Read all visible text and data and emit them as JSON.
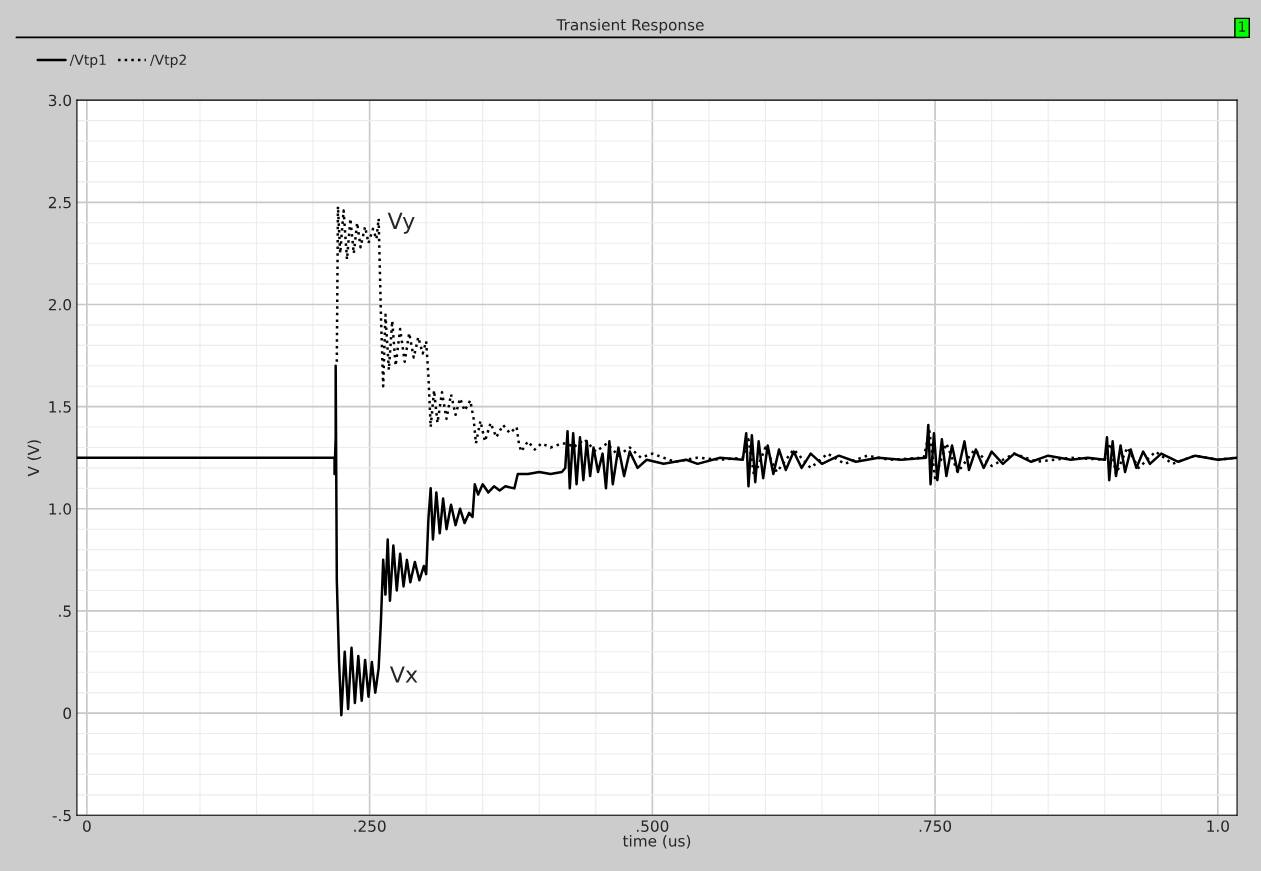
{
  "chart_data": {
    "type": "line",
    "title": "Transient Response",
    "xlabel": "time (us)",
    "ylabel": "V (V)",
    "annotations": [
      {
        "text": "Vy",
        "x": 0.256,
        "y": 2.44
      },
      {
        "text": "Vx",
        "x": 0.258,
        "y": 0.22
      },
      "1"
    ],
    "xlim": [
      -0.0088,
      1.017
    ],
    "ylim": [
      -0.5,
      3.0
    ],
    "xticks": [
      0,
      {
        "value": 0.25,
        "label": ".250"
      },
      {
        "value": 0.5,
        "label": ".500"
      },
      {
        "value": 0.75,
        "label": ".750"
      },
      {
        "value": 1.0,
        "label": "1.0"
      }
    ],
    "yticks": [
      {
        "value": -0.5,
        "label": "-.5"
      },
      0,
      {
        "value": 0.5,
        "label": ".5"
      },
      {
        "value": 1.0,
        "label": "1.0"
      },
      {
        "value": 1.5,
        "label": "1.5"
      },
      {
        "value": 2.0,
        "label": "2.0"
      },
      {
        "value": 2.5,
        "label": "2.5"
      },
      {
        "value": 3.0,
        "label": "3.0"
      }
    ],
    "grid": true,
    "legend": "top left",
    "marker": "none",
    "series": [
      {
        "name": "/Vtp1",
        "color": "#000000",
        "line_style": "solid",
        "x": [
          -0.0088,
          0.219,
          0.219,
          0.22,
          0.22,
          0.221,
          0.223,
          0.225,
          0.228,
          0.231,
          0.234,
          0.237,
          0.24,
          0.243,
          0.246,
          0.249,
          0.252,
          0.255,
          0.258,
          0.26,
          0.262,
          0.264,
          0.266,
          0.268,
          0.271,
          0.274,
          0.277,
          0.28,
          0.283,
          0.286,
          0.29,
          0.294,
          0.298,
          0.3,
          0.302,
          0.304,
          0.306,
          0.309,
          0.312,
          0.315,
          0.318,
          0.322,
          0.326,
          0.33,
          0.334,
          0.338,
          0.341,
          0.343,
          0.346,
          0.35,
          0.355,
          0.36,
          0.365,
          0.37,
          0.378,
          0.381,
          0.39,
          0.4,
          0.41,
          0.42,
          0.423,
          0.425,
          0.427,
          0.43,
          0.433,
          0.436,
          0.439,
          0.442,
          0.445,
          0.448,
          0.452,
          0.456,
          0.459,
          0.462,
          0.465,
          0.47,
          0.475,
          0.48,
          0.487,
          0.495,
          0.51,
          0.53,
          0.54,
          0.56,
          0.58,
          0.583,
          0.585,
          0.588,
          0.591,
          0.594,
          0.598,
          0.602,
          0.607,
          0.612,
          0.618,
          0.625,
          0.632,
          0.64,
          0.65,
          0.665,
          0.68,
          0.7,
          0.72,
          0.742,
          0.744,
          0.746,
          0.749,
          0.752,
          0.756,
          0.76,
          0.765,
          0.77,
          0.776,
          0.78,
          0.786,
          0.793,
          0.8,
          0.81,
          0.82,
          0.835,
          0.85,
          0.87,
          0.885,
          0.9,
          0.902,
          0.904,
          0.907,
          0.91,
          0.914,
          0.918,
          0.923,
          0.928,
          0.934,
          0.94,
          0.95,
          0.965,
          0.98,
          1.0,
          1.017
        ],
        "values": [
          1.25,
          1.25,
          1.17,
          1.35,
          1.7,
          0.65,
          0.25,
          -0.01,
          0.3,
          0.02,
          0.32,
          0.05,
          0.28,
          0.06,
          0.26,
          0.08,
          0.25,
          0.1,
          0.22,
          0.45,
          0.75,
          0.58,
          0.85,
          0.55,
          0.82,
          0.6,
          0.78,
          0.62,
          0.75,
          0.64,
          0.74,
          0.65,
          0.72,
          0.68,
          0.95,
          1.1,
          0.85,
          1.08,
          0.88,
          1.05,
          0.9,
          1.02,
          0.92,
          1.0,
          0.93,
          0.98,
          0.96,
          1.12,
          1.07,
          1.12,
          1.08,
          1.11,
          1.09,
          1.11,
          1.1,
          1.17,
          1.17,
          1.18,
          1.17,
          1.18,
          1.2,
          1.38,
          1.1,
          1.37,
          1.12,
          1.35,
          1.14,
          1.33,
          1.16,
          1.3,
          1.18,
          1.27,
          1.1,
          1.33,
          1.12,
          1.3,
          1.16,
          1.28,
          1.2,
          1.24,
          1.22,
          1.24,
          1.22,
          1.25,
          1.24,
          1.37,
          1.11,
          1.36,
          1.13,
          1.33,
          1.15,
          1.31,
          1.17,
          1.29,
          1.19,
          1.28,
          1.2,
          1.27,
          1.22,
          1.26,
          1.23,
          1.25,
          1.24,
          1.25,
          1.41,
          1.12,
          1.37,
          1.14,
          1.34,
          1.16,
          1.31,
          1.18,
          1.33,
          1.19,
          1.29,
          1.2,
          1.28,
          1.22,
          1.27,
          1.23,
          1.26,
          1.24,
          1.25,
          1.24,
          1.35,
          1.14,
          1.33,
          1.16,
          1.31,
          1.18,
          1.29,
          1.2,
          1.28,
          1.22,
          1.27,
          1.23,
          1.26,
          1.24,
          1.25
        ]
      },
      {
        "name": "/Vtp2",
        "color": "#000000",
        "line_style": "dotted",
        "x": [
          0.221,
          0.222,
          0.224,
          0.227,
          0.23,
          0.233,
          0.236,
          0.239,
          0.242,
          0.246,
          0.249,
          0.253,
          0.256,
          0.258,
          0.26,
          0.262,
          0.264,
          0.267,
          0.27,
          0.273,
          0.277,
          0.281,
          0.285,
          0.289,
          0.293,
          0.297,
          0.3,
          0.302,
          0.304,
          0.307,
          0.31,
          0.314,
          0.318,
          0.322,
          0.326,
          0.33,
          0.334,
          0.339,
          0.342,
          0.344,
          0.348,
          0.352,
          0.357,
          0.362,
          0.368,
          0.374,
          0.38,
          0.382,
          0.384,
          0.39,
          0.396,
          0.402,
          0.41,
          0.42,
          0.425,
          0.43,
          0.44,
          0.45,
          0.46,
          0.47,
          0.48,
          0.49,
          0.5,
          0.52,
          0.54,
          0.56,
          0.58,
          0.585,
          0.59,
          0.6,
          0.61,
          0.625,
          0.64,
          0.655,
          0.67,
          0.69,
          0.71,
          0.74,
          0.745,
          0.75,
          0.76,
          0.77,
          0.785,
          0.8,
          0.82,
          0.84,
          0.87,
          0.9,
          0.905,
          0.91,
          0.92,
          0.93,
          0.945,
          0.96,
          0.98,
          1.0,
          1.017
        ],
        "values": [
          1.72,
          2.48,
          2.25,
          2.46,
          2.22,
          2.42,
          2.25,
          2.4,
          2.28,
          2.38,
          2.3,
          2.37,
          2.32,
          2.42,
          1.95,
          1.6,
          1.95,
          1.68,
          1.92,
          1.7,
          1.88,
          1.72,
          1.86,
          1.74,
          1.84,
          1.76,
          1.82,
          1.65,
          1.4,
          1.58,
          1.42,
          1.57,
          1.44,
          1.56,
          1.46,
          1.54,
          1.48,
          1.53,
          1.44,
          1.32,
          1.43,
          1.33,
          1.42,
          1.35,
          1.41,
          1.37,
          1.4,
          1.32,
          1.28,
          1.33,
          1.29,
          1.32,
          1.3,
          1.32,
          1.32,
          1.3,
          1.34,
          1.28,
          1.32,
          1.26,
          1.3,
          1.25,
          1.27,
          1.23,
          1.25,
          1.24,
          1.25,
          1.34,
          1.16,
          1.3,
          1.18,
          1.29,
          1.2,
          1.27,
          1.22,
          1.26,
          1.24,
          1.25,
          1.38,
          1.15,
          1.32,
          1.18,
          1.29,
          1.21,
          1.27,
          1.23,
          1.25,
          1.24,
          1.32,
          1.17,
          1.3,
          1.2,
          1.28,
          1.22,
          1.26,
          1.24,
          1.25
        ]
      }
    ]
  }
}
